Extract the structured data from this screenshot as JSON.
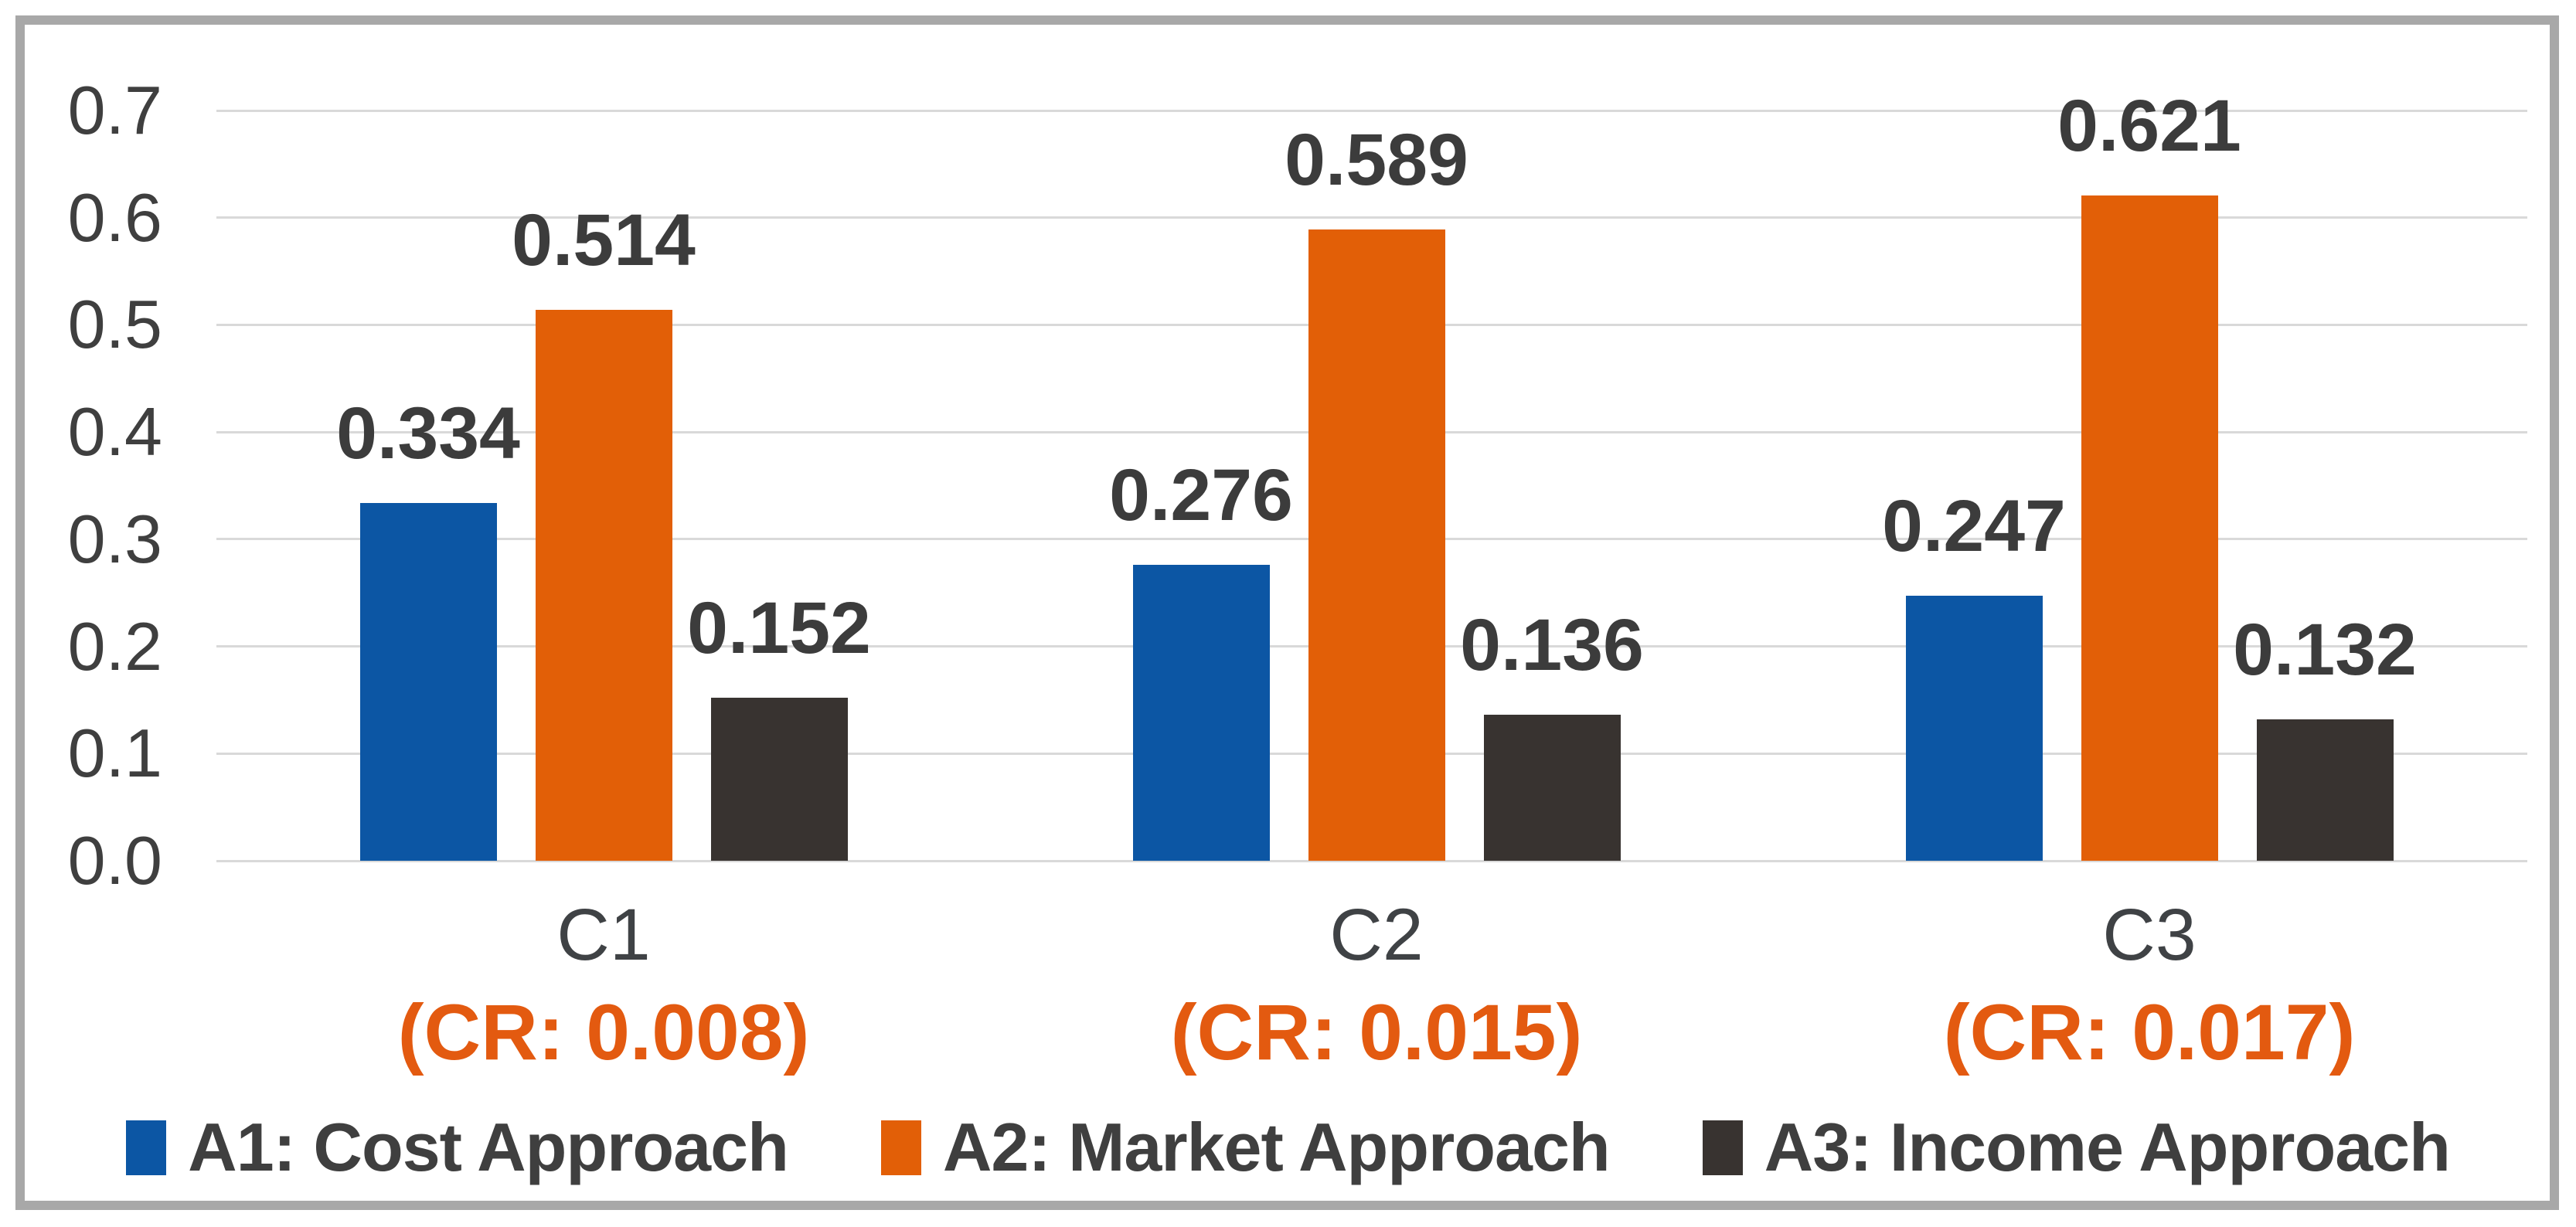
{
  "chart_data": {
    "type": "bar",
    "title": "",
    "categories": [
      {
        "label": "C1",
        "sublabel": "(CR: 0.008)"
      },
      {
        "label": "C2",
        "sublabel": "(CR: 0.015)"
      },
      {
        "label": "C3",
        "sublabel": "(CR: 0.017)"
      }
    ],
    "series": [
      {
        "name": "A1: Cost Approach",
        "color": "#0C56A4",
        "values": [
          0.334,
          0.276,
          0.247
        ]
      },
      {
        "name": "A2: Market Approach",
        "color": "#E25F07",
        "values": [
          0.514,
          0.589,
          0.621
        ]
      },
      {
        "name": "A3: Income Approach",
        "color": "#383330",
        "values": [
          0.152,
          0.136,
          0.132
        ]
      }
    ],
    "y_axis": {
      "min": 0.0,
      "max": 0.7,
      "step": 0.1,
      "tick_labels": [
        "0.0",
        "0.1",
        "0.2",
        "0.3",
        "0.4",
        "0.5",
        "0.6",
        "0.7"
      ]
    },
    "grid": true,
    "legend_position": "bottom",
    "style": {
      "gridline_color": "#D9D9D9",
      "border_color": "#A8A8A8",
      "axis_text_color": "#3F3F3F",
      "value_label_color": "#3C3C3C",
      "category_label_color": "#3F4245",
      "cr_label_color": "#E35A10",
      "background": "#FFFFFF"
    }
  }
}
